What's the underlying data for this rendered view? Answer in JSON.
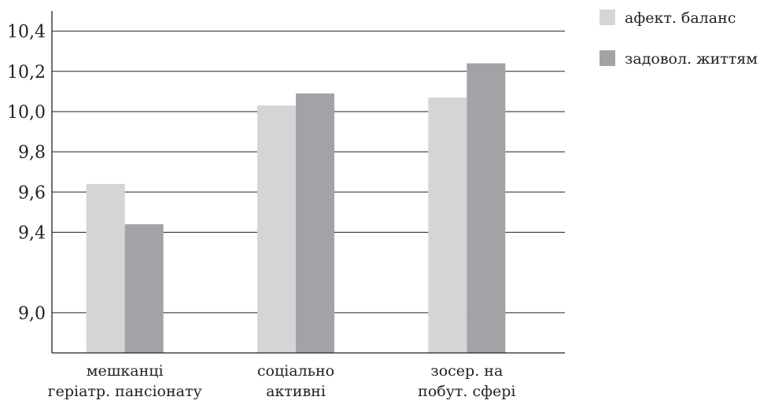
{
  "chart_data": {
    "type": "bar",
    "categories": [
      [
        "мешканці",
        "геріатр. пансіонату"
      ],
      [
        "соціально",
        "активні"
      ],
      [
        "зосер. на",
        "побут. сфері"
      ]
    ],
    "series": [
      {
        "name": "афект. баланс",
        "values": [
          9.64,
          10.03,
          10.07
        ],
        "color": "#d4d5d7"
      },
      {
        "name": "задовол. життям",
        "values": [
          9.44,
          10.09,
          10.24
        ],
        "color": "#a2a3a6"
      }
    ],
    "y_ticks": [
      "9,0",
      "9,4",
      "9,6",
      "9,8",
      "10,0",
      "10,2",
      "10,4"
    ],
    "y_tick_values": [
      9.0,
      9.4,
      9.6,
      9.8,
      10.0,
      10.2,
      10.4
    ],
    "ylim": [
      8.8,
      10.5
    ],
    "grid": true,
    "legend_position": "top-right"
  }
}
